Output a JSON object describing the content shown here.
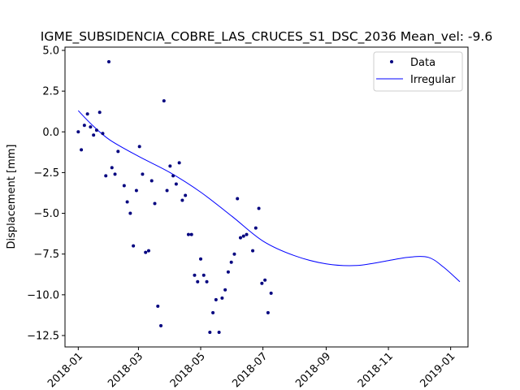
{
  "chart_data": {
    "type": "scatter",
    "title": "IGME_SUBSIDENCIA_COBRE_LAS_CRUCES_S1_DSC_2036     Mean_vel: -9.6",
    "xlabel": "",
    "ylabel": "Displacement [mm]",
    "xlim": [
      "2017-12-19",
      "2019-01-18"
    ],
    "ylim": [
      -13.2,
      5.2
    ],
    "x_ticks": [
      "2018-01",
      "2018-03",
      "2018-05",
      "2018-07",
      "2018-09",
      "2018-11",
      "2019-01"
    ],
    "y_ticks": [
      5.0,
      2.5,
      0.0,
      -2.5,
      -5.0,
      -7.5,
      -10.0,
      -12.5
    ],
    "y_tick_labels": [
      "5.0",
      "2.5",
      "0.0",
      "−2.5",
      "−5.0",
      "−7.5",
      "−10.0",
      "−12.5"
    ],
    "legend_position": "top-right",
    "colors": {
      "data": "#00007f",
      "irregular": "#0000ff"
    },
    "series": [
      {
        "name": "Data",
        "kind": "points",
        "points": [
          [
            "2018-01-01",
            0.0
          ],
          [
            "2018-01-04",
            -1.1
          ],
          [
            "2018-01-07",
            0.4
          ],
          [
            "2018-01-10",
            1.1
          ],
          [
            "2018-01-13",
            0.3
          ],
          [
            "2018-01-16",
            -0.2
          ],
          [
            "2018-01-19",
            0.1
          ],
          [
            "2018-01-22",
            1.2
          ],
          [
            "2018-01-25",
            -0.1
          ],
          [
            "2018-01-28",
            -2.7
          ],
          [
            "2018-01-31",
            4.3
          ],
          [
            "2018-02-03",
            -2.2
          ],
          [
            "2018-02-06",
            -2.6
          ],
          [
            "2018-02-09",
            -1.2
          ],
          [
            "2018-02-15",
            -3.3
          ],
          [
            "2018-02-18",
            -4.3
          ],
          [
            "2018-02-21",
            -5.0
          ],
          [
            "2018-02-24",
            -7.0
          ],
          [
            "2018-02-27",
            -3.6
          ],
          [
            "2018-03-02",
            -0.9
          ],
          [
            "2018-03-05",
            -2.6
          ],
          [
            "2018-03-08",
            -7.4
          ],
          [
            "2018-03-11",
            -7.3
          ],
          [
            "2018-03-14",
            -3.0
          ],
          [
            "2018-03-17",
            -4.4
          ],
          [
            "2018-03-20",
            -10.7
          ],
          [
            "2018-03-23",
            -11.9
          ],
          [
            "2018-03-26",
            1.9
          ],
          [
            "2018-03-29",
            -3.6
          ],
          [
            "2018-04-01",
            -2.1
          ],
          [
            "2018-04-04",
            -2.7
          ],
          [
            "2018-04-07",
            -3.2
          ],
          [
            "2018-04-10",
            -1.9
          ],
          [
            "2018-04-13",
            -4.2
          ],
          [
            "2018-04-16",
            -3.9
          ],
          [
            "2018-04-19",
            -6.3
          ],
          [
            "2018-04-22",
            -6.3
          ],
          [
            "2018-04-25",
            -8.8
          ],
          [
            "2018-04-28",
            -9.2
          ],
          [
            "2018-05-01",
            -7.8
          ],
          [
            "2018-05-04",
            -8.8
          ],
          [
            "2018-05-07",
            -9.2
          ],
          [
            "2018-05-10",
            -12.3
          ],
          [
            "2018-05-13",
            -11.1
          ],
          [
            "2018-05-16",
            -10.3
          ],
          [
            "2018-05-19",
            -12.3
          ],
          [
            "2018-05-22",
            -10.2
          ],
          [
            "2018-05-25",
            -9.7
          ],
          [
            "2018-05-28",
            -8.6
          ],
          [
            "2018-05-31",
            -8.0
          ],
          [
            "2018-06-03",
            -7.5
          ],
          [
            "2018-06-06",
            -4.1
          ],
          [
            "2018-06-09",
            -6.5
          ],
          [
            "2018-06-12",
            -6.4
          ],
          [
            "2018-06-15",
            -6.3
          ],
          [
            "2018-06-21",
            -7.3
          ],
          [
            "2018-06-24",
            -5.9
          ],
          [
            "2018-06-27",
            -4.7
          ],
          [
            "2018-06-30",
            -9.3
          ],
          [
            "2018-07-03",
            -9.1
          ],
          [
            "2018-07-06",
            -11.1
          ],
          [
            "2018-07-09",
            -9.9
          ]
        ]
      },
      {
        "name": "Irregular",
        "kind": "line",
        "points": [
          [
            "2018-01-01",
            1.3
          ],
          [
            "2018-01-15",
            0.4
          ],
          [
            "2018-02-01",
            -0.5
          ],
          [
            "2018-03-01",
            -1.5
          ],
          [
            "2018-04-01",
            -2.5
          ],
          [
            "2018-05-01",
            -3.7
          ],
          [
            "2018-06-01",
            -5.2
          ],
          [
            "2018-07-01",
            -6.7
          ],
          [
            "2018-08-01",
            -7.6
          ],
          [
            "2018-09-01",
            -8.1
          ],
          [
            "2018-10-01",
            -8.2
          ],
          [
            "2018-11-01",
            -7.9
          ],
          [
            "2018-11-20",
            -7.7
          ],
          [
            "2018-12-10",
            -7.7
          ],
          [
            "2018-12-25",
            -8.3
          ],
          [
            "2019-01-10",
            -9.2
          ]
        ]
      }
    ]
  }
}
